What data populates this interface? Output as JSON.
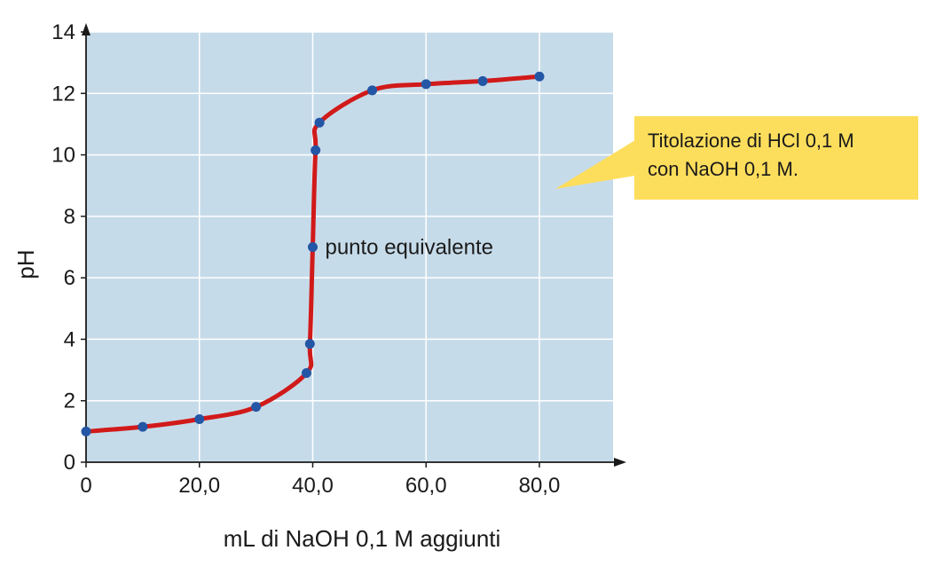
{
  "chart_data": {
    "type": "line",
    "title": "",
    "xlabel": "mL di NaOH 0,1 M aggiunti",
    "ylabel": "pH",
    "xlim": [
      0,
      93
    ],
    "ylim": [
      0,
      14
    ],
    "x_ticks": [
      0,
      20,
      40,
      60,
      80
    ],
    "x_tick_labels": [
      "0",
      "20,0",
      "40,0",
      "60,0",
      "80,0"
    ],
    "y_ticks": [
      0,
      2,
      4,
      6,
      8,
      10,
      12,
      14
    ],
    "y_tick_labels": [
      "0",
      "2",
      "4",
      "6",
      "8",
      "10",
      "12",
      "14"
    ],
    "grid": true,
    "series": [
      {
        "x": [
          0,
          10,
          20,
          30,
          38.9,
          39.5,
          40,
          40.5,
          41.2,
          50.5,
          60,
          70,
          80
        ],
        "y": [
          1.0,
          1.15,
          1.4,
          1.8,
          2.9,
          3.85,
          7.0,
          10.15,
          11.05,
          12.1,
          12.3,
          12.4,
          12.55
        ]
      }
    ],
    "annotations": [
      {
        "text": "punto equivalente",
        "x": 40,
        "y": 7.0
      }
    ],
    "callout": {
      "line1": "Titolazione di HCl 0,1 M",
      "line2": "con NaOH 0,1 M."
    },
    "colors": {
      "plot_background": "#c6dbe9",
      "grid": "#ffffff",
      "curve": "#d11a1a",
      "points": "#2456a6",
      "callout_fill": "#fdde5c"
    }
  }
}
